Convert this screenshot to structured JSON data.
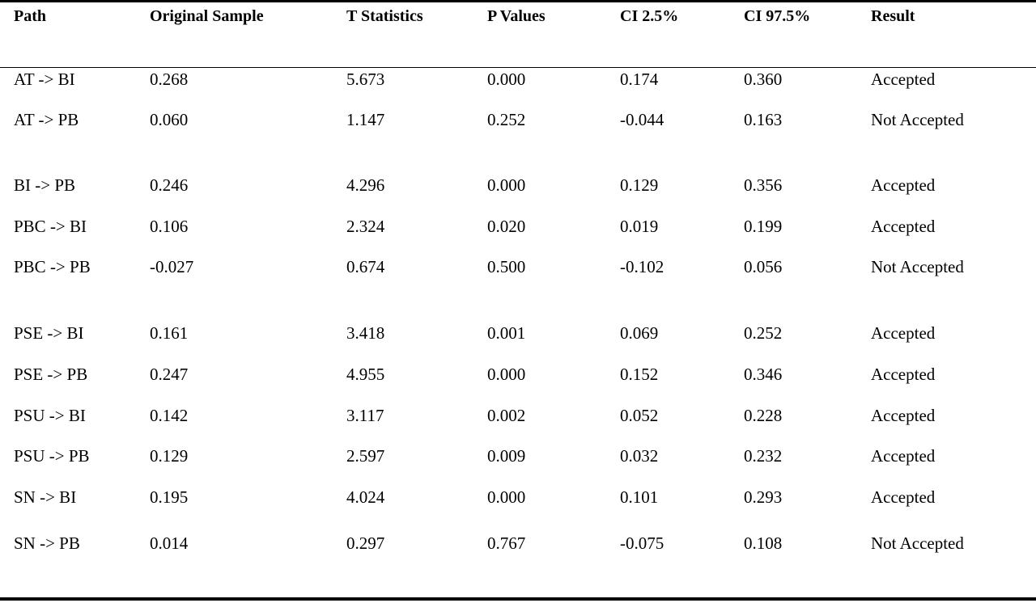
{
  "table": {
    "headers": [
      "Path",
      "Original Sample",
      "T Statistics",
      "P Values",
      "CI 2.5%",
      "CI 97.5%",
      "Result"
    ],
    "rows": [
      [
        "AT -> BI",
        "0.268",
        "5.673",
        "0.000",
        "0.174",
        "0.360",
        "Accepted"
      ],
      [
        "AT -> PB",
        "0.060",
        "1.147",
        "0.252",
        "-0.044",
        "0.163",
        "Not Accepted"
      ],
      [
        "BI -> PB",
        "0.246",
        "4.296",
        "0.000",
        "0.129",
        "0.356",
        "Accepted"
      ],
      [
        "PBC -> BI",
        "0.106",
        "2.324",
        "0.020",
        "0.019",
        "0.199",
        "Accepted"
      ],
      [
        "PBC -> PB",
        "-0.027",
        "0.674",
        "0.500",
        "-0.102",
        "0.056",
        "Not Accepted"
      ],
      [
        "PSE -> BI",
        "0.161",
        "3.418",
        "0.001",
        "0.069",
        "0.252",
        "Accepted"
      ],
      [
        "PSE -> PB",
        "0.247",
        "4.955",
        "0.000",
        "0.152",
        "0.346",
        "Accepted"
      ],
      [
        "PSU -> BI",
        "0.142",
        "3.117",
        "0.002",
        "0.052",
        "0.228",
        "Accepted"
      ],
      [
        "PSU -> PB",
        "0.129",
        "2.597",
        "0.009",
        "0.032",
        "0.232",
        "Accepted"
      ],
      [
        "SN -> BI",
        "0.195",
        "4.024",
        "0.000",
        "0.101",
        "0.293",
        "Accepted"
      ],
      [
        "SN -> PB",
        "0.014",
        "0.297",
        "0.767",
        "-0.075",
        "0.108",
        "Not Accepted"
      ]
    ]
  }
}
